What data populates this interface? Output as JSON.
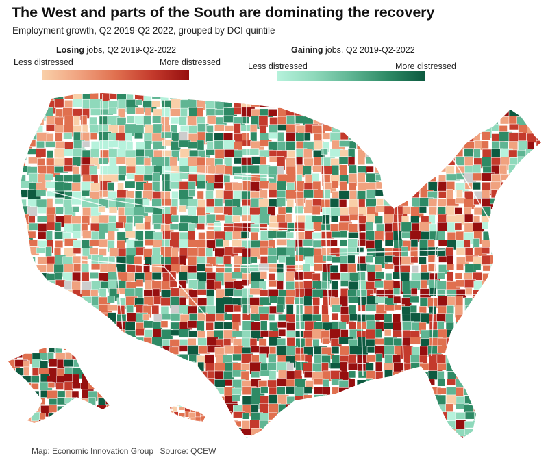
{
  "title": "The West and parts of the South are dominating the recovery",
  "subtitle": "Employment growth, Q2 2019-Q2 2022, grouped by DCI quintile",
  "legend": {
    "losing": {
      "title_bold": "Losing",
      "title_rest": " jobs, Q2 2019-Q2-2022",
      "low_label": "Less distressed",
      "high_label": "More distressed",
      "colors": [
        "#f9cfa8",
        "#f0a27f",
        "#e0704f",
        "#c43a2c",
        "#960f0f"
      ]
    },
    "gaining": {
      "title_bold": "Gaining",
      "title_rest": " jobs, Q2 2019-Q2-2022",
      "low_label": "Less distressed",
      "high_label": "More distressed",
      "colors": [
        "#b6f2dc",
        "#8fd9bb",
        "#5fb593",
        "#2e8a65",
        "#0d5a40"
      ]
    }
  },
  "map": {
    "no_data_color": "#cccccc",
    "border_color": "#ffffff"
  },
  "footer": {
    "credit": "Map: Economic Innovation Group",
    "source": "Source: QCEW"
  }
}
